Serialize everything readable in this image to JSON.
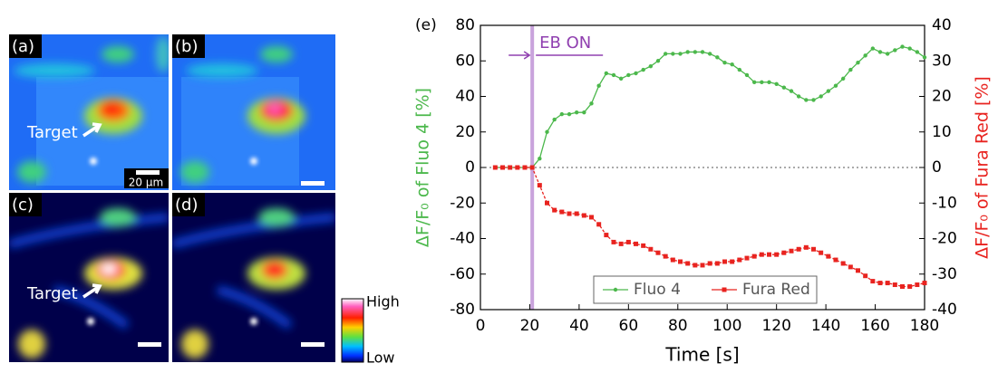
{
  "panels": [
    {
      "label": "(a)",
      "annotation": "Target",
      "scale_bar": "20 μm"
    },
    {
      "label": "(b)"
    },
    {
      "label": "(c)",
      "annotation": "Target"
    },
    {
      "label": "(d)"
    }
  ],
  "colorbar": {
    "high": "High",
    "low": "Low"
  },
  "chart_data": {
    "type": "line",
    "panel_label": "(e)",
    "xlabel": "Time [s]",
    "ylabel": "ΔF/F₀ of Fluo 4 [%]",
    "y2label": "ΔF/F₀ of Fura Red [%]",
    "x": [
      6,
      9,
      12,
      15,
      18,
      21,
      24,
      27,
      30,
      33,
      36,
      39,
      42,
      45,
      48,
      51,
      54,
      57,
      60,
      63,
      66,
      69,
      72,
      75,
      78,
      81,
      84,
      87,
      90,
      93,
      96,
      99,
      102,
      105,
      108,
      111,
      114,
      117,
      120,
      123,
      126,
      129,
      132,
      135,
      138,
      141,
      144,
      147,
      150,
      153,
      156,
      159,
      162,
      165,
      168,
      171,
      174,
      177,
      180
    ],
    "xlim": [
      0,
      180
    ],
    "xticks": [
      0,
      20,
      40,
      60,
      80,
      100,
      120,
      140,
      160,
      180
    ],
    "ylim": [
      -80,
      80
    ],
    "yticks": [
      -80,
      -60,
      -40,
      -20,
      0,
      20,
      40,
      60,
      80
    ],
    "y2lim": [
      -40,
      40
    ],
    "y2ticks": [
      -40,
      -30,
      -20,
      -10,
      0,
      10,
      20,
      30,
      40
    ],
    "annotation": {
      "text": "EB ON",
      "x": 21,
      "color": "#c9a3dc"
    },
    "legend": "lower center",
    "series": [
      {
        "name": "Fluo 4",
        "color": "#4cb84c",
        "axis": "y",
        "values": [
          0,
          0,
          0,
          0,
          0,
          0,
          5,
          20,
          27,
          30,
          30,
          31,
          31,
          36,
          46,
          53,
          52,
          50,
          52,
          53,
          55,
          57,
          60,
          64,
          64,
          64,
          65,
          65,
          65,
          64,
          62,
          59,
          58,
          55,
          52,
          48,
          48,
          48,
          47,
          45,
          43,
          40,
          38,
          38,
          40,
          43,
          46,
          50,
          55,
          59,
          63,
          67,
          65,
          64,
          66,
          68,
          67,
          65,
          62
        ]
      },
      {
        "name": "Fura Red",
        "color": "#e8231f",
        "axis": "y2",
        "values": [
          0,
          0,
          0,
          0,
          0,
          0,
          -5,
          -10,
          -12,
          -12.5,
          -13,
          -13,
          -13.5,
          -14,
          -16,
          -19,
          -21,
          -21.5,
          -21,
          -21.5,
          -22,
          -23,
          -24,
          -25,
          -26,
          -26.5,
          -27,
          -27.5,
          -27.5,
          -27,
          -27,
          -26.5,
          -26.5,
          -26,
          -25.5,
          -25,
          -24.5,
          -24.5,
          -24.5,
          -24,
          -23.5,
          -23,
          -22.5,
          -23,
          -24,
          -25,
          -26,
          -27,
          -28,
          -29,
          -30.5,
          -32,
          -32.5,
          -32.5,
          -33,
          -33.5,
          -33.5,
          -33,
          -32.5
        ]
      }
    ]
  }
}
